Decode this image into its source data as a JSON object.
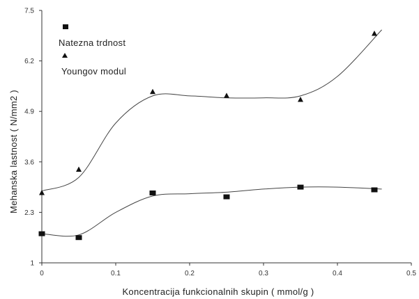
{
  "chart_data": {
    "type": "scatter",
    "title": "",
    "xlabel": "Koncentracija  funkcionalnih  skupin ( mmol/g )",
    "ylabel": "Mehanska  lastnost  ( N/mm2 )",
    "xlim": [
      0,
      0.5
    ],
    "ylim": [
      1,
      7.5
    ],
    "x_ticks": [
      "0",
      "0.1",
      "0.2",
      "0.3",
      "0.4",
      "0.5"
    ],
    "y_ticks": [
      "1",
      "2.3",
      "3.6",
      "4.9",
      "6.2",
      "7.5"
    ],
    "grid": false,
    "legend_position": "top-left",
    "series": [
      {
        "name": "Natezna  trdnost",
        "marker": "square",
        "color": "#111111",
        "x": [
          0.0,
          0.05,
          0.15,
          0.25,
          0.35,
          0.45
        ],
        "y": [
          1.75,
          1.65,
          2.8,
          2.7,
          2.95,
          2.88
        ],
        "trend": {
          "x": [
            0.0,
            0.05,
            0.1,
            0.15,
            0.2,
            0.25,
            0.3,
            0.35,
            0.4,
            0.46
          ],
          "y": [
            1.75,
            1.72,
            2.3,
            2.72,
            2.78,
            2.82,
            2.9,
            2.95,
            2.95,
            2.9
          ]
        }
      },
      {
        "name": "Youngov  modul",
        "marker": "triangle",
        "color": "#111111",
        "x": [
          0.0,
          0.05,
          0.15,
          0.25,
          0.35,
          0.45
        ],
        "y": [
          2.8,
          3.4,
          5.4,
          5.3,
          5.2,
          6.9
        ],
        "trend": {
          "x": [
            0.0,
            0.05,
            0.1,
            0.15,
            0.2,
            0.25,
            0.3,
            0.35,
            0.4,
            0.46
          ],
          "y": [
            2.85,
            3.2,
            4.6,
            5.3,
            5.3,
            5.25,
            5.25,
            5.3,
            5.8,
            7.0
          ]
        }
      }
    ]
  }
}
